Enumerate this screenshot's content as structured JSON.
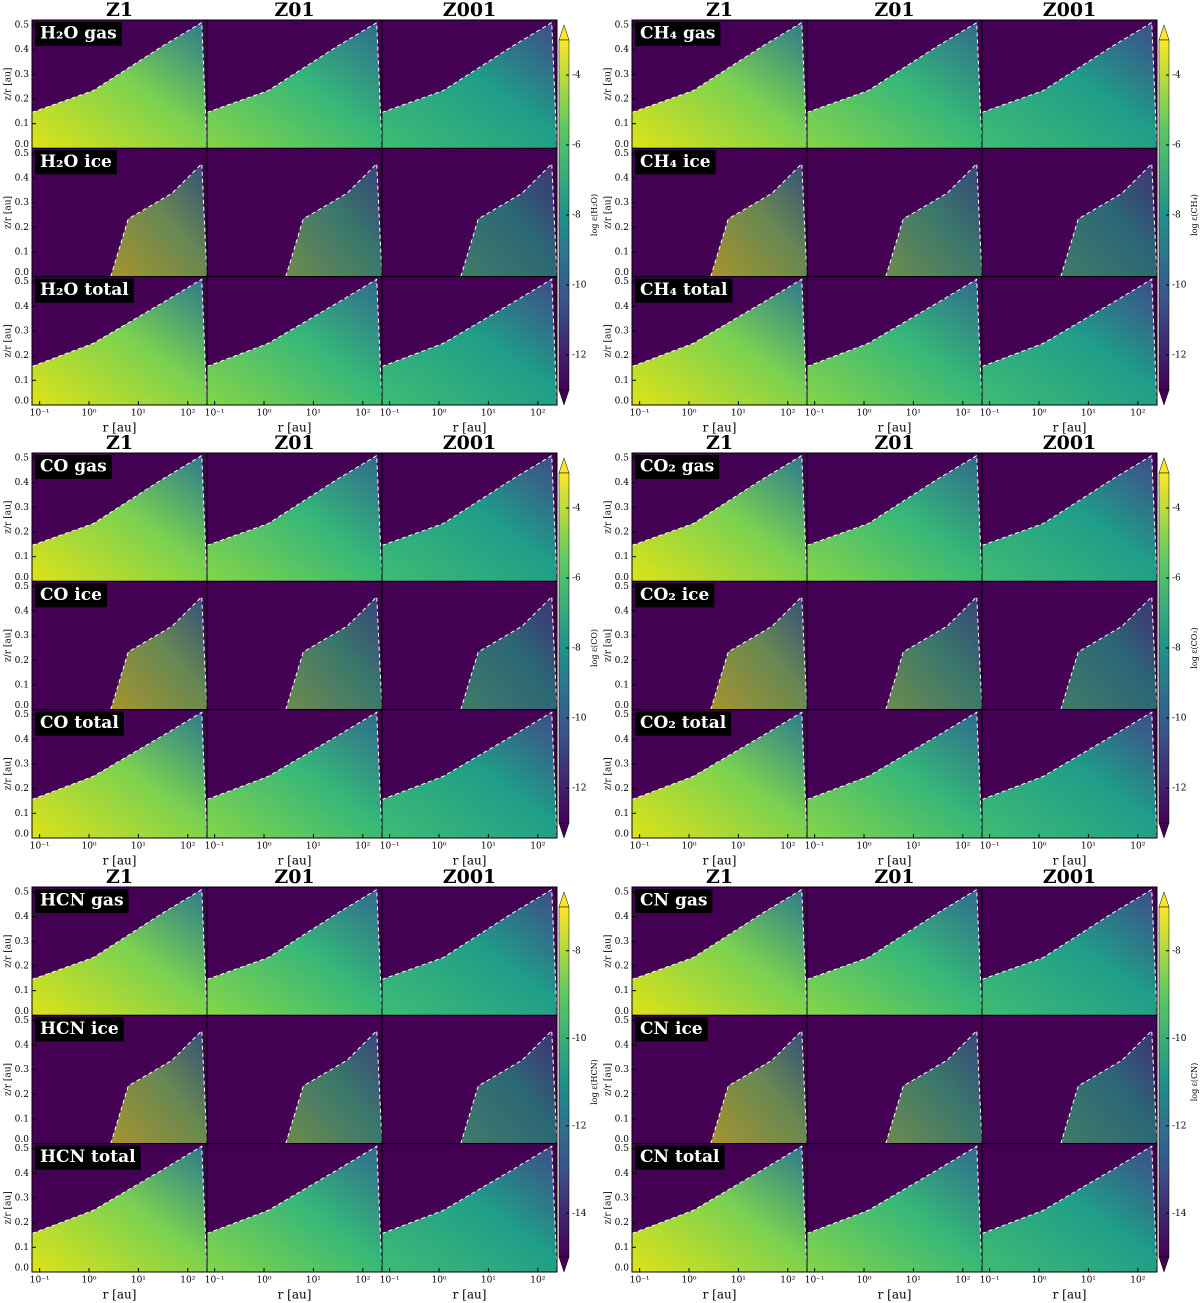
{
  "chart_data": [
    {
      "type": "heatmap",
      "columns": [
        "Z1",
        "Z01",
        "Z001"
      ],
      "rows": [
        "H₂O gas",
        "H₂O ice",
        "H₂O total"
      ],
      "xlabel": "r [au]",
      "ylabel": "z/r [au]",
      "colorbar_label": "log ε(H₂O)",
      "xscale": "log",
      "xlim": [
        0.07,
        245
      ],
      "xticks": [
        {
          "value": 0.1,
          "label": "10⁻¹"
        },
        {
          "value": 1,
          "label": "10⁰"
        },
        {
          "value": 10,
          "label": "10¹"
        },
        {
          "value": 100,
          "label": "10²"
        }
      ],
      "ylim": [
        0,
        0.52
      ],
      "yticks": [
        {
          "value": 0,
          "label": "0.0"
        },
        0.1,
        0.2,
        0.3,
        0.4,
        0.5
      ],
      "clim": [
        -13,
        -3
      ],
      "cticks": [
        -4,
        -6,
        -8,
        -10,
        -12
      ]
    },
    {
      "type": "heatmap",
      "columns": [
        "Z1",
        "Z01",
        "Z001"
      ],
      "rows": [
        "CH₄ gas",
        "CH₄ ice",
        "CH₄ total"
      ],
      "xlabel": "r [au]",
      "ylabel": "z/r [au]",
      "colorbar_label": "log ε(CH₄)",
      "xscale": "log",
      "xlim": [
        0.07,
        245
      ],
      "xticks": [
        {
          "value": 0.1,
          "label": "10⁻¹"
        },
        {
          "value": 1,
          "label": "10⁰"
        },
        {
          "value": 10,
          "label": "10¹"
        },
        {
          "value": 100,
          "label": "10²"
        }
      ],
      "ylim": [
        0,
        0.52
      ],
      "yticks": [
        {
          "value": 0,
          "label": "0.0"
        },
        0.1,
        0.2,
        0.3,
        0.4,
        0.5
      ],
      "clim": [
        -13,
        -3
      ],
      "cticks": [
        -4,
        -6,
        -8,
        -10,
        -12
      ]
    },
    {
      "type": "heatmap",
      "columns": [
        "Z1",
        "Z01",
        "Z001"
      ],
      "rows": [
        "CO gas",
        "CO ice",
        "CO total"
      ],
      "xlabel": "r [au]",
      "ylabel": "z/r [au]",
      "colorbar_label": "log ε(CO)",
      "xscale": "log",
      "xlim": [
        0.07,
        245
      ],
      "xticks": [
        {
          "value": 0.1,
          "label": "10⁻¹"
        },
        {
          "value": 1,
          "label": "10⁰"
        },
        {
          "value": 10,
          "label": "10¹"
        },
        {
          "value": 100,
          "label": "10²"
        }
      ],
      "ylim": [
        0,
        0.52
      ],
      "yticks": [
        {
          "value": 0,
          "label": "0.0"
        },
        0.1,
        0.2,
        0.3,
        0.4,
        0.5
      ],
      "clim": [
        -13,
        -3
      ],
      "cticks": [
        -4,
        -6,
        -8,
        -10,
        -12
      ]
    },
    {
      "type": "heatmap",
      "columns": [
        "Z1",
        "Z01",
        "Z001"
      ],
      "rows": [
        "CO₂ gas",
        "CO₂ ice",
        "CO₂ total"
      ],
      "xlabel": "r [au]",
      "ylabel": "z/r [au]",
      "colorbar_label": "log ε(CO₂)",
      "xscale": "log",
      "xlim": [
        0.07,
        245
      ],
      "xticks": [
        {
          "value": 0.1,
          "label": "10⁻¹"
        },
        {
          "value": 1,
          "label": "10⁰"
        },
        {
          "value": 10,
          "label": "10¹"
        },
        {
          "value": 100,
          "label": "10²"
        }
      ],
      "ylim": [
        0,
        0.52
      ],
      "yticks": [
        {
          "value": 0,
          "label": "0.0"
        },
        0.1,
        0.2,
        0.3,
        0.4,
        0.5
      ],
      "clim": [
        -13,
        -3
      ],
      "cticks": [
        -4,
        -6,
        -8,
        -10,
        -12
      ]
    },
    {
      "type": "heatmap",
      "columns": [
        "Z1",
        "Z01",
        "Z001"
      ],
      "rows": [
        "HCN gas",
        "HCN ice",
        "HCN total"
      ],
      "xlabel": "r [au]",
      "ylabel": "z/r [au]",
      "colorbar_label": "log ε(HCN)",
      "xscale": "log",
      "xlim": [
        0.07,
        245
      ],
      "xticks": [
        {
          "value": 0.1,
          "label": "10⁻¹"
        },
        {
          "value": 1,
          "label": "10⁰"
        },
        {
          "value": 10,
          "label": "10¹"
        },
        {
          "value": 100,
          "label": "10²"
        }
      ],
      "ylim": [
        0,
        0.52
      ],
      "yticks": [
        {
          "value": 0,
          "label": "0.0"
        },
        0.1,
        0.2,
        0.3,
        0.4,
        0.5
      ],
      "clim": [
        -15,
        -7
      ],
      "cticks": [
        -8,
        -10,
        -12,
        -14
      ]
    },
    {
      "type": "heatmap",
      "columns": [
        "Z1",
        "Z01",
        "Z001"
      ],
      "rows": [
        "CN gas",
        "CN ice",
        "CN total"
      ],
      "xlabel": "r [au]",
      "ylabel": "z/r [au]",
      "colorbar_label": "log ε(CN)",
      "xscale": "log",
      "xlim": [
        0.07,
        245
      ],
      "xticks": [
        {
          "value": 0.1,
          "label": "10⁻¹"
        },
        {
          "value": 1,
          "label": "10⁰"
        },
        {
          "value": 10,
          "label": "10¹"
        },
        {
          "value": 100,
          "label": "10²"
        }
      ],
      "ylim": [
        0,
        0.52
      ],
      "yticks": [
        {
          "value": 0,
          "label": "0.0"
        },
        0.1,
        0.2,
        0.3,
        0.4,
        0.5
      ],
      "clim": [
        -15,
        -7
      ],
      "cticks": [
        -8,
        -10,
        -12,
        -14
      ]
    }
  ]
}
